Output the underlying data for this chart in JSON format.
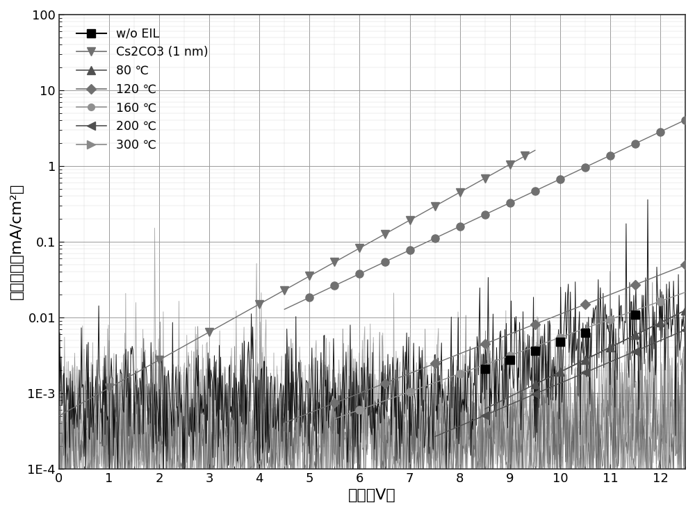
{
  "xlabel": "电压（V）",
  "ylabel": "电流密度（mA/cm²）",
  "xlim": [
    0,
    12.5
  ],
  "xticks": [
    0,
    1,
    2,
    3,
    4,
    5,
    6,
    7,
    8,
    9,
    10,
    11,
    12
  ],
  "background_color": "#ffffff"
}
